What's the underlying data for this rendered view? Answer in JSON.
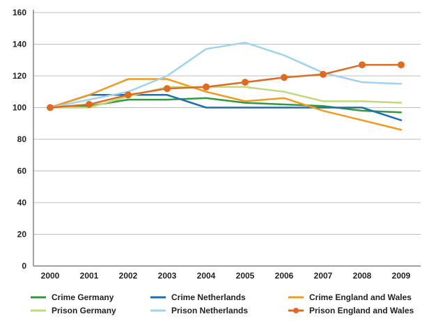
{
  "chart_data": {
    "type": "line",
    "x": [
      "2000",
      "2001",
      "2002",
      "2003",
      "2004",
      "2005",
      "2006",
      "2007",
      "2008",
      "2009"
    ],
    "ylim": [
      0,
      160
    ],
    "yticks": [
      "0",
      "20",
      "40",
      "60",
      "80",
      "100",
      "120",
      "140",
      "160"
    ],
    "grid": "horizontal",
    "legend_position": "bottom",
    "series": [
      {
        "name": "Crime Germany",
        "color": "#2e9a3d",
        "markers": false,
        "values": [
          100,
          101,
          105,
          105,
          106,
          103,
          102,
          101,
          98,
          97
        ]
      },
      {
        "name": "Crime Netherlands",
        "color": "#1a6fb0",
        "markers": false,
        "values": [
          100,
          108,
          108,
          108,
          100,
          100,
          100,
          100,
          100,
          92
        ]
      },
      {
        "name": "Crime England and Wales",
        "color": "#f39a1e",
        "markers": false,
        "values": [
          100,
          108,
          118,
          118,
          110,
          104,
          106,
          98,
          92,
          86
        ]
      },
      {
        "name": "Prison Germany",
        "color": "#c2d97a",
        "markers": false,
        "values": [
          100,
          100,
          107,
          113,
          113,
          113,
          110,
          104,
          104,
          103
        ]
      },
      {
        "name": "Prison Netherlands",
        "color": "#9fd3ef",
        "markers": false,
        "values": [
          100,
          105,
          110,
          120,
          137,
          141,
          133,
          122,
          116,
          115
        ]
      },
      {
        "name": "Prison England and Wales",
        "color": "#e06a1f",
        "markers": true,
        "values": [
          100,
          102,
          108,
          112,
          113,
          116,
          119,
          121,
          127,
          127
        ]
      }
    ]
  }
}
